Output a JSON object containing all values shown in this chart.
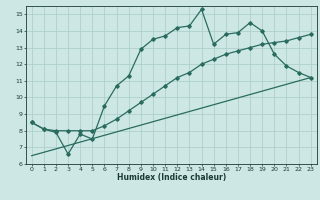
{
  "title": "",
  "xlabel": "Humidex (Indice chaleur)",
  "xlim": [
    -0.5,
    23.5
  ],
  "ylim": [
    6,
    15.5
  ],
  "xticks": [
    0,
    1,
    2,
    3,
    4,
    5,
    6,
    7,
    8,
    9,
    10,
    11,
    12,
    13,
    14,
    15,
    16,
    17,
    18,
    19,
    20,
    21,
    22,
    23
  ],
  "yticks": [
    6,
    7,
    8,
    9,
    10,
    11,
    12,
    13,
    14,
    15
  ],
  "bg_color": "#cde8e4",
  "grid_color": "#aed0cc",
  "line_color": "#2a6b60",
  "line1_x": [
    0,
    1,
    2,
    3,
    4,
    5,
    6,
    7,
    8,
    9,
    10,
    11,
    12,
    13,
    14,
    15,
    16,
    17,
    18,
    19,
    20,
    21,
    22,
    23
  ],
  "line1_y": [
    8.5,
    8.1,
    7.9,
    6.6,
    7.8,
    7.5,
    9.5,
    10.7,
    11.3,
    12.9,
    13.5,
    13.7,
    14.2,
    14.3,
    15.3,
    13.2,
    13.8,
    13.9,
    14.5,
    14.0,
    12.6,
    11.9,
    11.5,
    11.2
  ],
  "line2_x": [
    0,
    1,
    2,
    3,
    4,
    5,
    6,
    7,
    8,
    9,
    10,
    11,
    12,
    13,
    14,
    15,
    16,
    17,
    18,
    19,
    20,
    21,
    22,
    23
  ],
  "line2_y": [
    8.5,
    8.1,
    8.0,
    8.0,
    8.0,
    8.0,
    8.3,
    8.7,
    9.2,
    9.7,
    10.2,
    10.7,
    11.2,
    11.5,
    12.0,
    12.3,
    12.6,
    12.8,
    13.0,
    13.2,
    13.3,
    13.4,
    13.6,
    13.8
  ],
  "line3_x": [
    0,
    23
  ],
  "line3_y": [
    6.5,
    11.2
  ],
  "xlabel_fontsize": 5.5,
  "tick_fontsize": 4.5,
  "lw": 0.9,
  "marker_size": 1.8
}
